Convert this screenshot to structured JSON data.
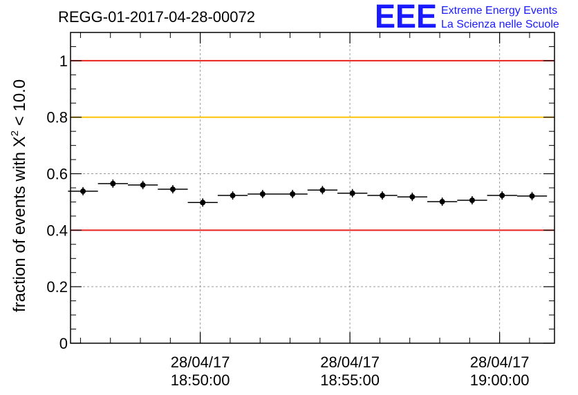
{
  "chart_data": {
    "type": "scatter",
    "title": "REGG-01-2017-04-28-00072",
    "ylabel_prefix": "fraction of events with ",
    "ylabel_symbol": "X",
    "ylabel_sup": "2",
    "ylabel_suffix": " < 10.0",
    "ylim": [
      0,
      1.1
    ],
    "y_ticks": [
      {
        "value": 0,
        "label": "0"
      },
      {
        "value": 0.2,
        "label": "0.2"
      },
      {
        "value": 0.4,
        "label": "0.4"
      },
      {
        "value": 0.6,
        "label": "0.6"
      },
      {
        "value": 0.8,
        "label": "0.8"
      },
      {
        "value": 1,
        "label": "1"
      }
    ],
    "xlim": [
      "18:45:40",
      "19:01:50"
    ],
    "x_ticks": [
      {
        "value": "18:50:00",
        "date": "28/04/17",
        "time": "18:50:00"
      },
      {
        "value": "18:55:00",
        "date": "28/04/17",
        "time": "18:55:00"
      },
      {
        "value": "19:00:00",
        "date": "28/04/17",
        "time": "19:00:00"
      }
    ],
    "grid": true,
    "reference_lines": [
      {
        "y": 1.0,
        "color": "#e8211b"
      },
      {
        "y": 0.8,
        "color": "#ffc200"
      },
      {
        "y": 0.4,
        "color": "#e8211b"
      }
    ],
    "points": [
      {
        "t": "18:46:05",
        "y": 0.538
      },
      {
        "t": "18:47:05",
        "y": 0.565
      },
      {
        "t": "18:48:05",
        "y": 0.56
      },
      {
        "t": "18:49:05",
        "y": 0.545
      },
      {
        "t": "18:50:05",
        "y": 0.498
      },
      {
        "t": "18:51:05",
        "y": 0.523
      },
      {
        "t": "18:52:05",
        "y": 0.528
      },
      {
        "t": "18:53:05",
        "y": 0.528
      },
      {
        "t": "18:54:05",
        "y": 0.542
      },
      {
        "t": "18:55:05",
        "y": 0.531
      },
      {
        "t": "18:56:05",
        "y": 0.523
      },
      {
        "t": "18:57:05",
        "y": 0.518
      },
      {
        "t": "18:58:05",
        "y": 0.501
      },
      {
        "t": "18:59:05",
        "y": 0.506
      },
      {
        "t": "19:00:05",
        "y": 0.523
      },
      {
        "t": "19:01:05",
        "y": 0.521
      }
    ],
    "point_color": "#000000"
  },
  "logo": {
    "mark": "EEE",
    "line1": "Extreme Energy Events",
    "line2": "La Scienza nelle Scuole",
    "color": "#1a1aff"
  }
}
